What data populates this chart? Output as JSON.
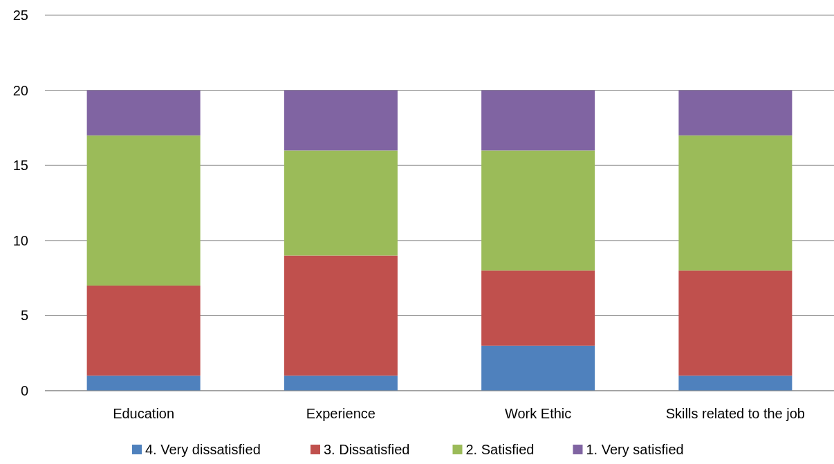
{
  "chart_data": {
    "type": "bar",
    "stacked": true,
    "categories": [
      "Education",
      "Experience",
      "Work Ethic",
      "Skills related to the job"
    ],
    "series": [
      {
        "name": "4. Very dissatisfied",
        "color": "#4f81bd",
        "values": [
          1,
          1,
          3,
          1
        ]
      },
      {
        "name": "3. Dissatisfied",
        "color": "#c0504d",
        "values": [
          6,
          8,
          5,
          7
        ]
      },
      {
        "name": "2. Satisfied",
        "color": "#9bbb59",
        "values": [
          10,
          7,
          8,
          9
        ]
      },
      {
        "name": "1. Very satisfied",
        "color": "#8064a2",
        "values": [
          3,
          4,
          4,
          3
        ]
      }
    ],
    "ylim": [
      0,
      25
    ],
    "yticks": [
      0,
      5,
      10,
      15,
      20,
      25
    ],
    "grid": "y",
    "legend": "bottom"
  }
}
